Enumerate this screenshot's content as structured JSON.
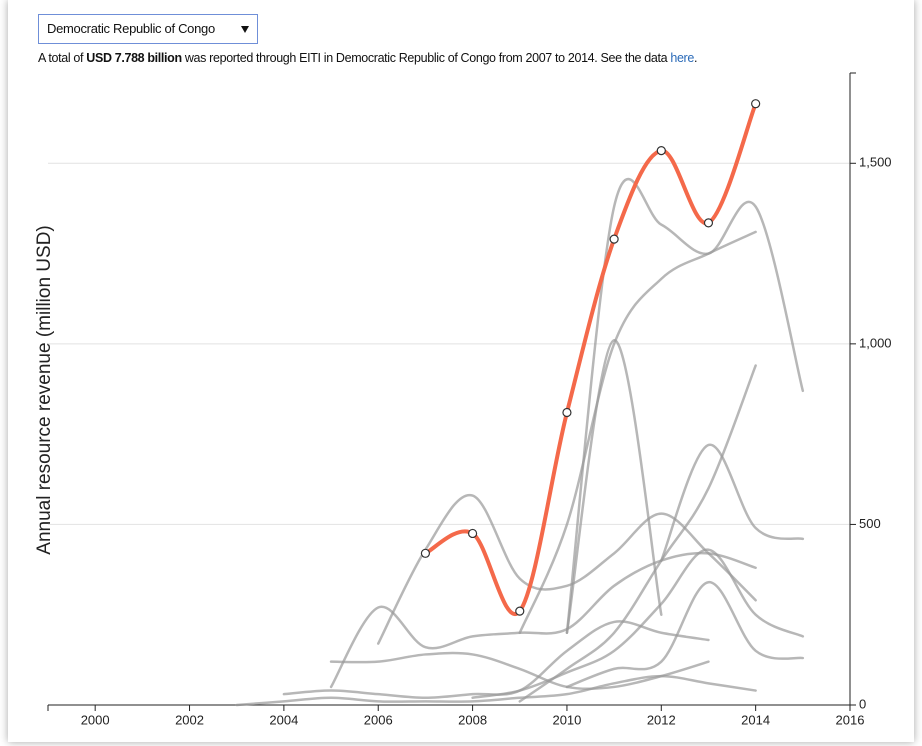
{
  "dropdown": {
    "label": "Democratic Republic of Congo"
  },
  "info": {
    "before": "A total of",
    "amount": "USD 7.788 billion",
    "middle": "was reported through EITI in Democratic Republic of Congo from 2007 to 2014. See the data",
    "link": "here",
    "end": "."
  },
  "chart_data": {
    "type": "line",
    "y_label": "Annual resource revenue (million USD)",
    "x": [
      2003,
      2004,
      2005,
      2006,
      2007,
      2008,
      2009,
      2010,
      2011,
      2012,
      2013,
      2014,
      2015
    ],
    "xlim": [
      1999,
      2016
    ],
    "xticks": [
      2000,
      2002,
      2004,
      2006,
      2008,
      2010,
      2012,
      2014,
      2016
    ],
    "ylim": [
      0,
      1750
    ],
    "yticks": [
      0,
      500,
      {
        "value": 1000,
        "label": "1,000"
      },
      {
        "value": 1500,
        "label": "1,500"
      }
    ],
    "grid": true,
    "y_axis_side": "right",
    "series": [
      {
        "color": "#999999",
        "values": [
          null,
          null,
          null,
          null,
          null,
          null,
          null,
          200,
          1380,
          1330,
          1250,
          1380,
          870
        ]
      },
      {
        "color": "#999999",
        "values": [
          null,
          null,
          null,
          null,
          null,
          null,
          null,
          200,
          1010,
          250,
          null,
          null,
          null
        ]
      },
      {
        "color": "#999999",
        "values": [
          null,
          null,
          null,
          170,
          430,
          580,
          350,
          330,
          420,
          530,
          420,
          290,
          null
        ]
      },
      {
        "color": "#999999",
        "values": [
          null,
          null,
          null,
          null,
          null,
          null,
          200,
          500,
          1000,
          1180,
          1250,
          1310,
          null
        ]
      },
      {
        "color": "#999999",
        "values": [
          null,
          null,
          50,
          270,
          160,
          190,
          200,
          210,
          330,
          400,
          420,
          380,
          null
        ]
      },
      {
        "color": "#999999",
        "values": [
          null,
          null,
          120,
          120,
          140,
          140,
          100,
          50,
          50,
          80,
          120,
          null,
          null
        ]
      },
      {
        "color": "#999999",
        "values": [
          null,
          null,
          null,
          null,
          null,
          null,
          10,
          100,
          200,
          400,
          600,
          940,
          null
        ]
      },
      {
        "color": "#999999",
        "values": [
          null,
          null,
          null,
          null,
          null,
          null,
          null,
          null,
          null,
          400,
          720,
          490,
          460
        ]
      },
      {
        "color": "#999999",
        "values": [
          null,
          30,
          40,
          30,
          20,
          30,
          40,
          150,
          230,
          200,
          180,
          null,
          null
        ]
      },
      {
        "color": "#999999",
        "values": [
          null,
          null,
          null,
          null,
          null,
          20,
          40,
          90,
          150,
          280,
          430,
          250,
          190
        ]
      },
      {
        "color": "#999999",
        "values": [
          0,
          10,
          20,
          10,
          10,
          10,
          20,
          30,
          60,
          80,
          60,
          40,
          null
        ]
      },
      {
        "color": "#999999",
        "values": [
          null,
          null,
          null,
          null,
          null,
          null,
          null,
          50,
          100,
          120,
          340,
          150,
          130
        ]
      },
      {
        "name": "Democratic Republic of Congo",
        "color": "#f4694a",
        "markers": true,
        "values": [
          null,
          null,
          null,
          null,
          420,
          475,
          260,
          810,
          1290,
          1535,
          1335,
          1665,
          null
        ]
      }
    ]
  }
}
